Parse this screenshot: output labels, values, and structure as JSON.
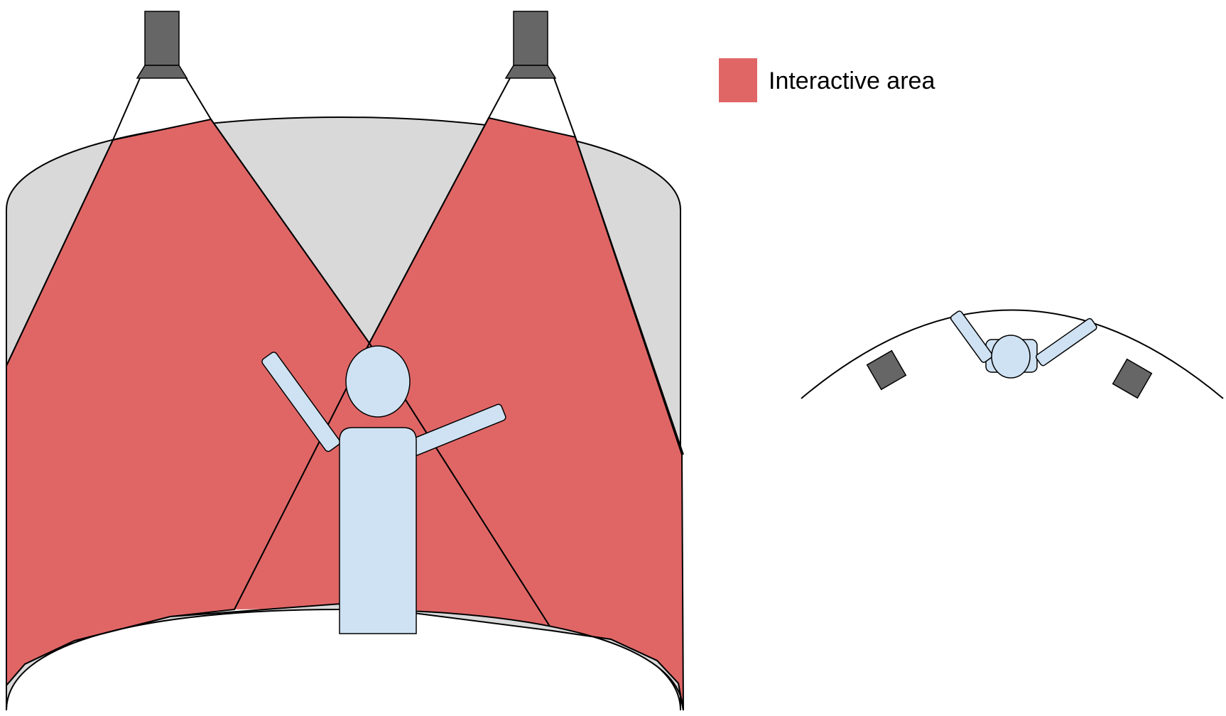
{
  "legend": {
    "label": "Interactive area",
    "swatch_color": "#E06666"
  },
  "colors": {
    "interactive_area": "#E06666",
    "screen_surface": "#D9D9D9",
    "projector": "#666666",
    "person": "#CFE2F3",
    "outline": "#000000"
  },
  "side_view": {
    "projectors": [
      "projector-left",
      "projector-right"
    ],
    "figure": "person-front-view"
  },
  "top_view": {
    "projectors": [
      "projector-left",
      "projector-right"
    ],
    "figure": "person-top-view"
  }
}
